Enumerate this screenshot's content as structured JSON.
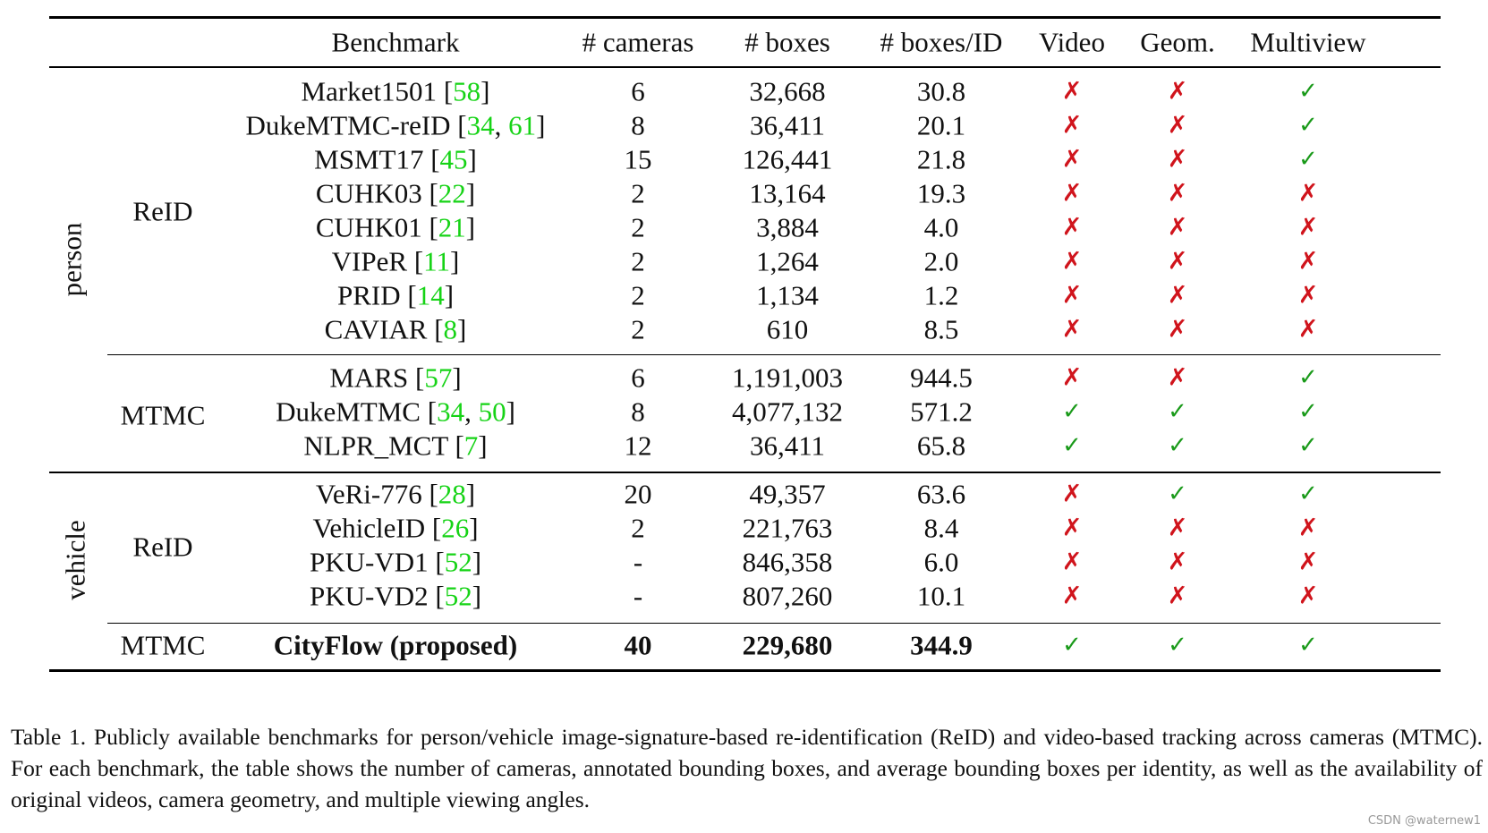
{
  "headers": [
    "Benchmark",
    "# cameras",
    "# boxes",
    "# boxes/ID",
    "Video",
    "Geom.",
    "Multiview"
  ],
  "sections": [
    "person",
    "vehicle"
  ],
  "groups": [
    {
      "label": "ReID"
    },
    {
      "label": "MTMC"
    },
    {
      "label": "ReID"
    },
    {
      "label": "MTMC"
    }
  ],
  "rows": [
    {
      "name": "Market1501",
      "open": " [",
      "refs": [
        "58"
      ],
      "close": "]",
      "cameras": "6",
      "boxes": "32,668",
      "per_id": "30.8",
      "video": "no",
      "geom": "no",
      "multiview": "yes"
    },
    {
      "name": "DukeMTMC-reID",
      "open": " [",
      "refs": [
        "34",
        "61"
      ],
      "close": "]",
      "cameras": "8",
      "boxes": "36,411",
      "per_id": "20.1",
      "video": "no",
      "geom": "no",
      "multiview": "yes"
    },
    {
      "name": "MSMT17",
      "open": " [",
      "refs": [
        "45"
      ],
      "close": "]",
      "cameras": "15",
      "boxes": "126,441",
      "per_id": "21.8",
      "video": "no",
      "geom": "no",
      "multiview": "yes"
    },
    {
      "name": "CUHK03",
      "open": " [",
      "refs": [
        "22"
      ],
      "close": "]",
      "cameras": "2",
      "boxes": "13,164",
      "per_id": "19.3",
      "video": "no",
      "geom": "no",
      "multiview": "no"
    },
    {
      "name": "CUHK01",
      "open": " [",
      "refs": [
        "21"
      ],
      "close": "]",
      "cameras": "2",
      "boxes": "3,884",
      "per_id": "4.0",
      "video": "no",
      "geom": "no",
      "multiview": "no"
    },
    {
      "name": "VIPeR",
      "open": " [",
      "refs": [
        "11"
      ],
      "close": "]",
      "cameras": "2",
      "boxes": "1,264",
      "per_id": "2.0",
      "video": "no",
      "geom": "no",
      "multiview": "no"
    },
    {
      "name": "PRID",
      "open": " [",
      "refs": [
        "14"
      ],
      "close": "]",
      "cameras": "2",
      "boxes": "1,134",
      "per_id": "1.2",
      "video": "no",
      "geom": "no",
      "multiview": "no"
    },
    {
      "name": "CAVIAR",
      "open": " [",
      "refs": [
        "8"
      ],
      "close": "]",
      "cameras": "2",
      "boxes": "610",
      "per_id": "8.5",
      "video": "no",
      "geom": "no",
      "multiview": "no"
    },
    {
      "name": "MARS",
      "open": " [",
      "refs": [
        "57"
      ],
      "close": "]",
      "cameras": "6",
      "boxes": "1,191,003",
      "per_id": "944.5",
      "video": "no",
      "geom": "no",
      "multiview": "yes"
    },
    {
      "name": "DukeMTMC",
      "open": " [",
      "refs": [
        "34",
        "50"
      ],
      "close": "]",
      "cameras": "8",
      "boxes": "4,077,132",
      "per_id": "571.2",
      "video": "yes",
      "geom": "yes",
      "multiview": "yes"
    },
    {
      "name": "NLPR_MCT",
      "open": " [",
      "refs": [
        "7"
      ],
      "close": "]",
      "cameras": "12",
      "boxes": "36,411",
      "per_id": "65.8",
      "video": "yes",
      "geom": "yes",
      "multiview": "yes"
    },
    {
      "name": "VeRi-776",
      "open": " [",
      "refs": [
        "28"
      ],
      "close": "]",
      "cameras": "20",
      "boxes": "49,357",
      "per_id": "63.6",
      "video": "no",
      "geom": "yes",
      "multiview": "yes"
    },
    {
      "name": "VehicleID",
      "open": " [",
      "refs": [
        "26"
      ],
      "close": "]",
      "cameras": "2",
      "boxes": "221,763",
      "per_id": "8.4",
      "video": "no",
      "geom": "no",
      "multiview": "no"
    },
    {
      "name": "PKU-VD1",
      "open": " [",
      "refs": [
        "52"
      ],
      "close": "]",
      "cameras": "-",
      "boxes": "846,358",
      "per_id": "6.0",
      "video": "no",
      "geom": "no",
      "multiview": "no"
    },
    {
      "name": "PKU-VD2",
      "open": " [",
      "refs": [
        "52"
      ],
      "close": "]",
      "cameras": "-",
      "boxes": "807,260",
      "per_id": "10.1",
      "video": "no",
      "geom": "no",
      "multiview": "no"
    },
    {
      "name": "CityFlow (proposed)",
      "open": "",
      "refs": [],
      "close": "",
      "cameras": "40",
      "boxes": "229,680",
      "per_id": "344.9",
      "video": "yes",
      "geom": "yes",
      "multiview": "yes",
      "bold": true
    }
  ],
  "symbols": {
    "yes": "✓",
    "no": "✗"
  },
  "colors": {
    "check": "#1a9a1a",
    "cross": "#d0141c",
    "ref": "#16d316"
  },
  "caption": "Table 1. Publicly available benchmarks for person/vehicle image-signature-based re-identification (ReID) and video-based tracking across cameras (MTMC). For each benchmark, the table shows the number of cameras, annotated bounding boxes, and average bounding boxes per identity, as well as the availability of original videos, camera geometry, and multiple viewing angles.",
  "watermark": "CSDN @waternew1"
}
